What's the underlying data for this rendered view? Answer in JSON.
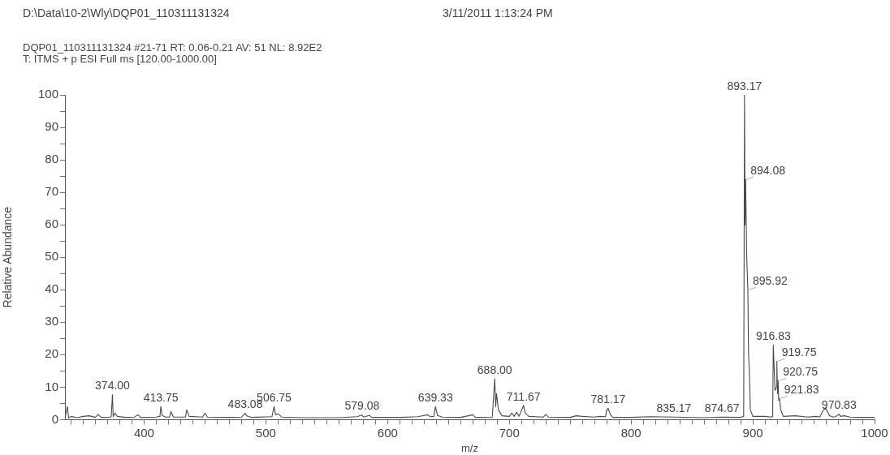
{
  "chart_data": {
    "type": "line",
    "title": "D:\\Data\\10-2\\Wly\\DQP01_110311131324",
    "subtitle": "DQP01_110311131324 #21-71   RT: 0.06-0.21   AV: 51   NL: 8.92E2",
    "xlabel": "m/z",
    "ylabel": "Relative Abundance",
    "annotations": [
      "3/11/2011 1:13:24 PM",
      "T: ITMS + p ESI Full ms [120.00-1000.00]",
      {
        "text": "374.00",
        "x": 374,
        "y": 7.7
      },
      {
        "text": "413.75",
        "x": 413.75,
        "y": 4
      },
      {
        "text": "483.08",
        "x": 483.08,
        "y": 2
      },
      {
        "text": "506.75",
        "x": 506.75,
        "y": 4
      },
      {
        "text": "579.08",
        "x": 579.08,
        "y": 1.5
      },
      {
        "text": "639.33",
        "x": 639.33,
        "y": 4
      },
      {
        "text": "688.00",
        "x": 688,
        "y": 12.6
      },
      {
        "text": "711.67",
        "x": 711.67,
        "y": 4.4
      },
      {
        "text": "781.17",
        "x": 781.17,
        "y": 3.5
      },
      {
        "text": "835.17",
        "x": 835.17,
        "y": 0.8
      },
      {
        "text": "874.67",
        "x": 874.67,
        "y": 0.8
      },
      {
        "text": "893.17",
        "x": 893.17,
        "y": 100
      },
      {
        "text": "894.08",
        "x": 894.08,
        "y": 74
      },
      {
        "text": "895.92",
        "x": 895.92,
        "y": 40
      },
      {
        "text": "916.83",
        "x": 916.83,
        "y": 23
      },
      {
        "text": "919.75",
        "x": 919.75,
        "y": 18
      },
      {
        "text": "920.75",
        "x": 920.75,
        "y": 12
      },
      {
        "text": "921.83",
        "x": 921.83,
        "y": 6.5
      },
      {
        "text": "970.83",
        "x": 970.83,
        "y": 1.7
      }
    ],
    "series": [
      {
        "color": "#4a4a4a",
        "x": [
          335,
          337,
          338,
          340,
          345,
          350,
          355,
          360,
          362,
          365,
          372,
          373,
          374,
          374.6,
          376,
          378,
          385,
          392,
          395,
          397,
          410,
          413,
          413.75,
          415,
          418,
          421,
          422,
          424,
          434,
          435,
          437,
          448,
          450,
          452,
          470,
          480,
          482,
          483.08,
          484,
          488,
          505,
          506.75,
          508,
          510,
          513,
          530,
          560,
          575,
          579.08,
          580,
          585,
          587,
          610,
          625,
          633,
          635,
          638,
          639.33,
          641,
          645,
          660,
          670,
          672,
          686,
          688,
          688.8,
          689.5,
          691,
          694,
          700,
          702,
          704,
          706,
          708,
          711.67,
          713,
          716,
          728,
          730,
          732,
          750,
          755,
          760,
          770,
          774,
          779,
          780,
          781.17,
          783,
          785,
          800,
          815,
          835.17,
          860,
          874.67,
          890,
          892.5,
          893.17,
          893.6,
          894.08,
          895,
          895.92,
          896.5,
          897,
          898,
          900,
          910,
          915,
          916.3,
          916.83,
          917.5,
          918.2,
          919.3,
          919.75,
          920.3,
          920.75,
          921.3,
          921.83,
          923,
          925,
          935,
          945,
          952,
          955,
          958,
          960,
          963,
          966,
          968,
          970.83,
          972,
          975,
          980,
          990,
          1000
        ],
        "values": [
          0.5,
          4,
          0.5,
          1,
          0.6,
          1,
          1.2,
          0.7,
          1.6,
          0.7,
          0.8,
          1,
          7.7,
          1,
          2,
          1,
          0.7,
          0.8,
          1.5,
          0.7,
          0.8,
          1,
          4,
          1.2,
          0.8,
          0.8,
          2.5,
          0.8,
          0.8,
          3,
          1,
          0.8,
          2,
          0.8,
          0.7,
          0.8,
          1.5,
          2,
          1.2,
          0.7,
          0.9,
          4,
          1.5,
          1.8,
          0.8,
          0.6,
          0.6,
          0.9,
          1.5,
          0.8,
          1.3,
          0.7,
          0.7,
          0.9,
          1.5,
          0.9,
          1,
          4,
          1.3,
          0.8,
          0.7,
          1.5,
          0.7,
          0.8,
          12.6,
          4,
          8,
          3,
          1.2,
          1,
          2,
          1,
          2.3,
          1,
          4.4,
          2,
          1,
          0.8,
          1.6,
          0.8,
          0.7,
          1.2,
          1,
          0.8,
          1,
          0.9,
          3,
          3.5,
          1.5,
          0.7,
          0.7,
          0.9,
          0.8,
          0.6,
          0.8,
          0.7,
          1,
          100,
          60,
          74,
          50,
          40,
          20,
          16,
          3,
          1,
          1,
          0.8,
          1,
          23,
          16,
          9,
          10,
          18,
          8,
          12,
          6,
          6.5,
          3,
          1,
          1.2,
          0.8,
          1,
          0.8,
          3,
          3.5,
          1.2,
          0.8,
          0.9,
          1.7,
          1,
          1.2,
          0.8,
          0.7,
          0.7
        ]
      }
    ],
    "xlim": [
      335,
      1000
    ],
    "xticks": [
      {
        "value": 340,
        "label": null
      },
      {
        "value": 350,
        "label": null
      },
      {
        "value": 360,
        "label": null
      },
      {
        "value": 370,
        "label": null
      },
      {
        "value": 380,
        "label": null
      },
      {
        "value": 390,
        "label": null
      },
      400,
      {
        "value": 410,
        "label": null
      },
      {
        "value": 420,
        "label": null
      },
      {
        "value": 430,
        "label": null
      },
      {
        "value": 440,
        "label": null
      },
      {
        "value": 450,
        "label": null
      },
      {
        "value": 460,
        "label": null
      },
      {
        "value": 470,
        "label": null
      },
      {
        "value": 480,
        "label": null
      },
      {
        "value": 490,
        "label": null
      },
      500,
      {
        "value": 510,
        "label": null
      },
      {
        "value": 520,
        "label": null
      },
      {
        "value": 530,
        "label": null
      },
      {
        "value": 540,
        "label": null
      },
      {
        "value": 550,
        "label": null
      },
      {
        "value": 560,
        "label": null
      },
      {
        "value": 570,
        "label": null
      },
      {
        "value": 580,
        "label": null
      },
      {
        "value": 590,
        "label": null
      },
      600,
      {
        "value": 610,
        "label": null
      },
      {
        "value": 620,
        "label": null
      },
      {
        "value": 630,
        "label": null
      },
      {
        "value": 640,
        "label": null
      },
      {
        "value": 650,
        "label": null
      },
      {
        "value": 660,
        "label": null
      },
      {
        "value": 670,
        "label": null
      },
      {
        "value": 680,
        "label": null
      },
      {
        "value": 690,
        "label": null
      },
      700,
      {
        "value": 710,
        "label": null
      },
      {
        "value": 720,
        "label": null
      },
      {
        "value": 730,
        "label": null
      },
      {
        "value": 740,
        "label": null
      },
      {
        "value": 750,
        "label": null
      },
      {
        "value": 760,
        "label": null
      },
      {
        "value": 770,
        "label": null
      },
      {
        "value": 780,
        "label": null
      },
      {
        "value": 790,
        "label": null
      },
      800,
      {
        "value": 810,
        "label": null
      },
      {
        "value": 820,
        "label": null
      },
      {
        "value": 830,
        "label": null
      },
      {
        "value": 840,
        "label": null
      },
      {
        "value": 850,
        "label": null
      },
      {
        "value": 860,
        "label": null
      },
      {
        "value": 870,
        "label": null
      },
      {
        "value": 880,
        "label": null
      },
      {
        "value": 890,
        "label": null
      },
      900,
      {
        "value": 910,
        "label": null
      },
      {
        "value": 920,
        "label": null
      },
      {
        "value": 930,
        "label": null
      },
      {
        "value": 940,
        "label": null
      },
      {
        "value": 950,
        "label": null
      },
      {
        "value": 960,
        "label": null
      },
      {
        "value": 970,
        "label": null
      },
      {
        "value": 980,
        "label": null
      },
      {
        "value": 990,
        "label": null
      },
      1000
    ],
    "ylim": [
      0,
      100
    ],
    "yticks": [
      0,
      {
        "value": 5,
        "label": null
      },
      10,
      {
        "value": 15,
        "label": null
      },
      20,
      {
        "value": 25,
        "label": null
      },
      30,
      {
        "value": 35,
        "label": null
      },
      40,
      {
        "value": 45,
        "label": null
      },
      50,
      {
        "value": 55,
        "label": null
      },
      60,
      {
        "value": 65,
        "label": null
      },
      70,
      {
        "value": 75,
        "label": null
      },
      80,
      {
        "value": 85,
        "label": null
      },
      90,
      {
        "value": 95,
        "label": null
      },
      100
    ],
    "grid": false,
    "legend": false,
    "marker": "none",
    "line_style": "solid"
  }
}
